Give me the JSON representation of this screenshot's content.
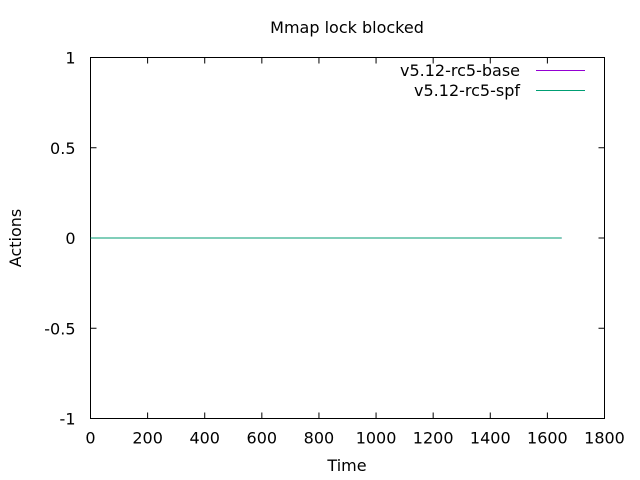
{
  "chart_data": {
    "type": "line",
    "title": "Mmap lock blocked",
    "xlabel": "Time",
    "ylabel": "Actions",
    "xlim": [
      0,
      1800
    ],
    "ylim": [
      -1,
      1
    ],
    "x_ticks": [
      0,
      200,
      400,
      600,
      800,
      1000,
      1200,
      1400,
      1600,
      1800
    ],
    "y_ticks": [
      -1,
      -0.5,
      0,
      0.5,
      1
    ],
    "y_tick_labels": [
      "-1",
      "-0.5",
      "0",
      "0.5",
      "1"
    ],
    "grid": false,
    "legend": "top-right",
    "series": [
      {
        "name": "v5.12-rc5-base",
        "color": "#9400d3",
        "x": [
          0,
          1650
        ],
        "y": [
          0,
          0
        ]
      },
      {
        "name": "v5.12-rc5-spf",
        "color": "#009e73",
        "x": [
          0,
          1650
        ],
        "y": [
          0,
          0
        ]
      }
    ]
  }
}
